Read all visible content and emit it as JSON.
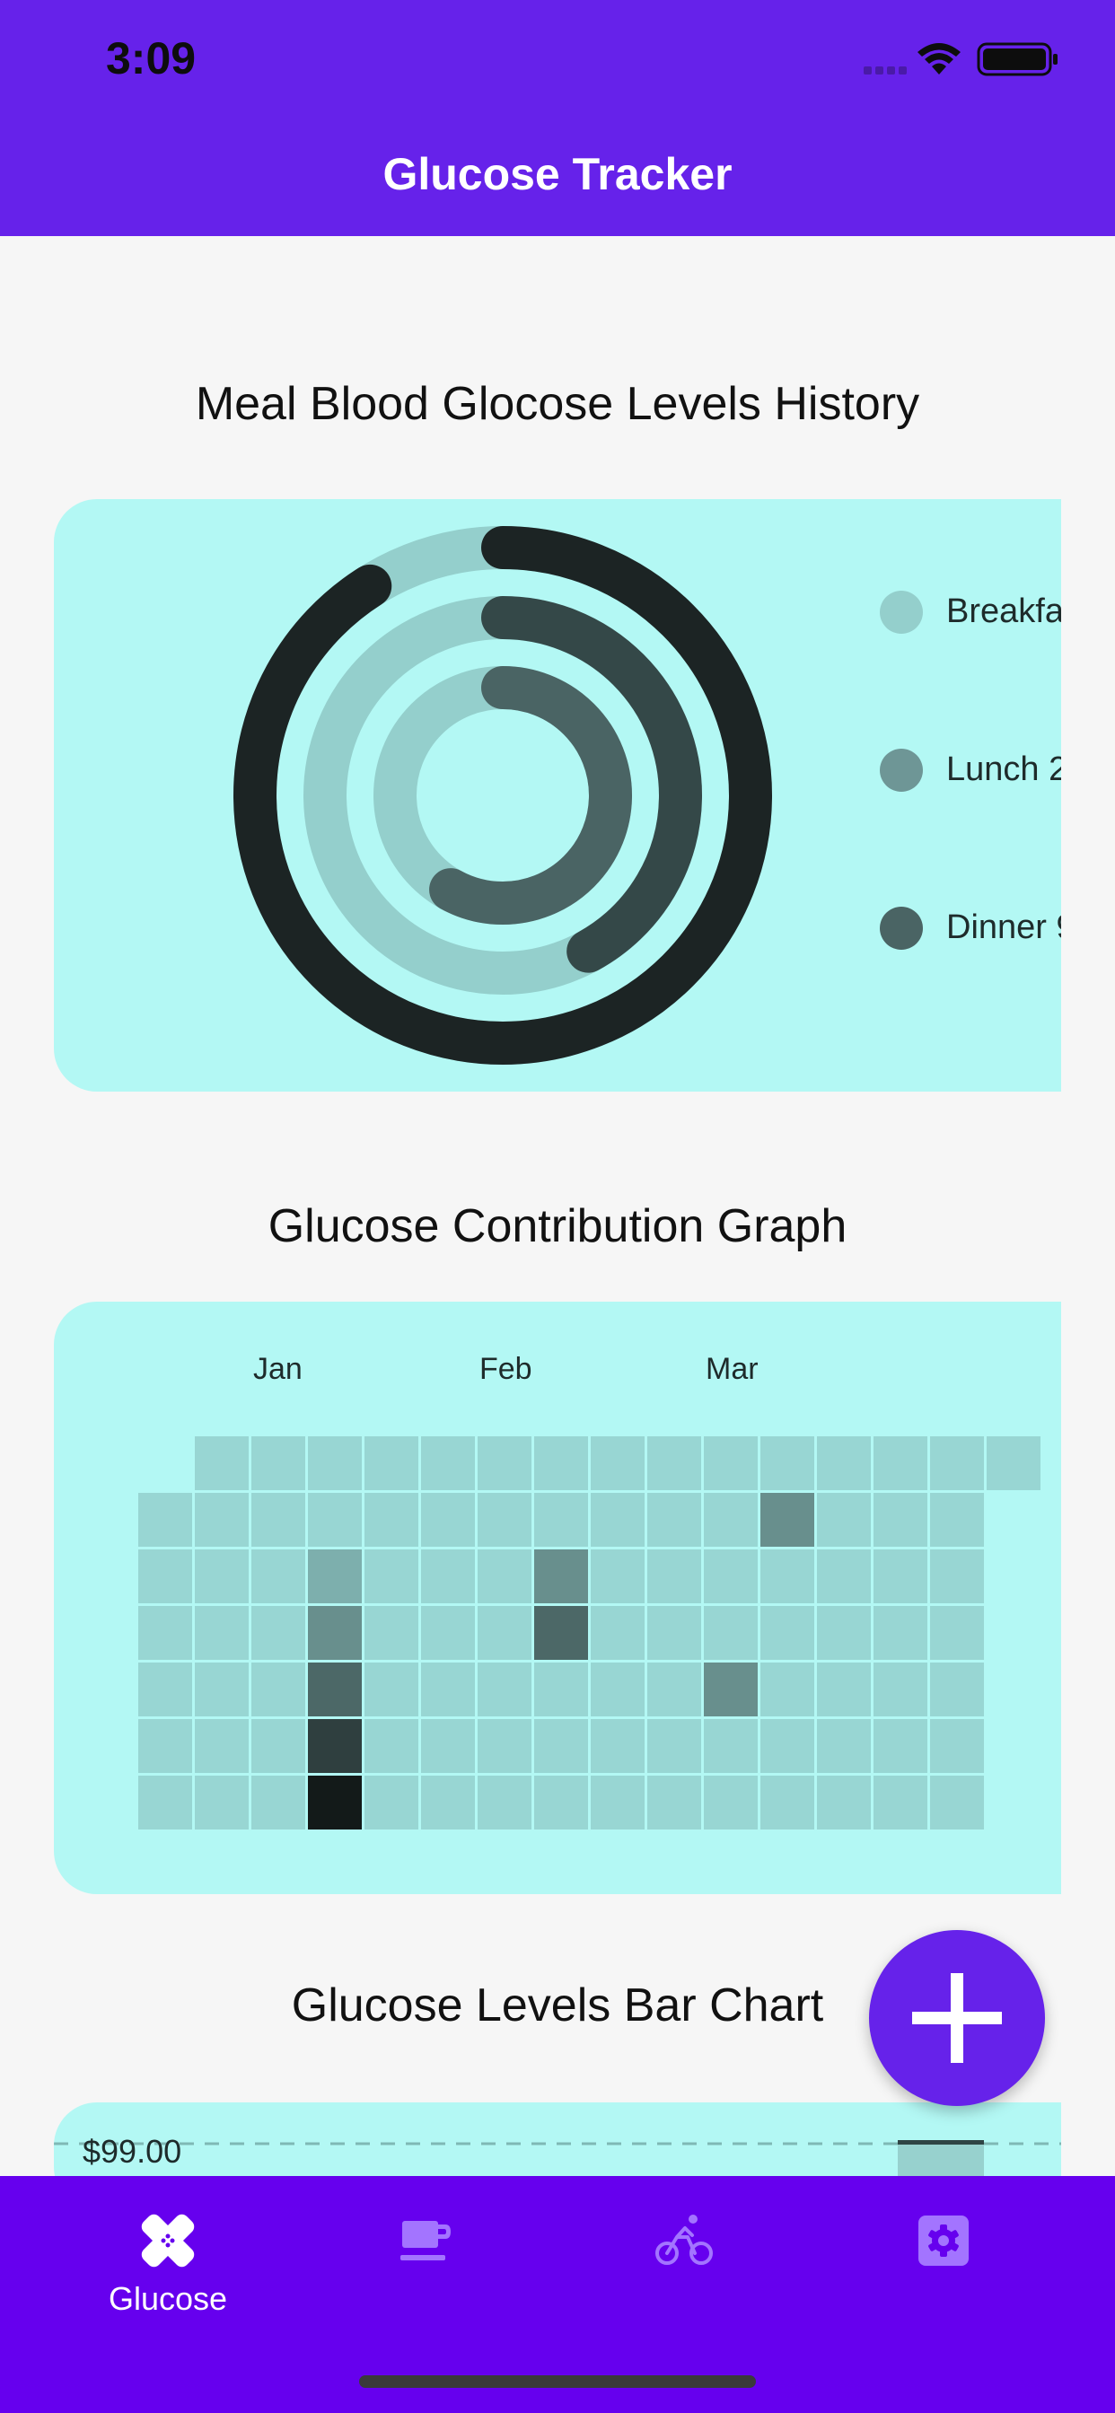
{
  "status_bar": {
    "time": "3:09"
  },
  "app_bar": {
    "title": "Glucose Tracker"
  },
  "ring_section": {
    "title": "Meal Blood Glocose Levels History",
    "legend": [
      {
        "label": "Breakfa",
        "color": "#94cfcc"
      },
      {
        "label": "Lunch 2",
        "color": "#6e9696"
      },
      {
        "label": "Dinner 9",
        "color": "#4a6464"
      }
    ]
  },
  "chart_data": [
    {
      "type": "progress-ring",
      "title": "Meal Blood Glocose Levels History",
      "series": [
        {
          "name": "Breakfa",
          "value": 0.58,
          "color": "#4a6464"
        },
        {
          "name": "Lunch 2",
          "value": 0.42,
          "color": "#344848"
        },
        {
          "name": "Dinner 9",
          "value": 0.91,
          "color": "#1c2424"
        }
      ],
      "track_color": "#94cfcc"
    },
    {
      "type": "heatmap",
      "title": "Glucose Contribution Graph",
      "months": [
        "Jan",
        "Feb",
        "Mar"
      ],
      "columns": 16,
      "rows": 7,
      "levels": {
        "0": "#98d6d3",
        "1": "#7dafad",
        "2": "#688f8d",
        "3": "#4c6867",
        "4": "#2f3f3f",
        "5": "#131a19"
      },
      "highlighted": [
        {
          "col": 11,
          "row": 1,
          "level": 2
        },
        {
          "col": 3,
          "row": 2,
          "level": 1
        },
        {
          "col": 7,
          "row": 2,
          "level": 2
        },
        {
          "col": 3,
          "row": 3,
          "level": 2
        },
        {
          "col": 7,
          "row": 3,
          "level": 3
        },
        {
          "col": 3,
          "row": 4,
          "level": 3
        },
        {
          "col": 10,
          "row": 4,
          "level": 2
        },
        {
          "col": 3,
          "row": 5,
          "level": 4
        },
        {
          "col": 3,
          "row": 6,
          "level": 5
        }
      ]
    },
    {
      "type": "bar",
      "title": "Glucose Levels Bar Chart",
      "y_tick_labels": [
        "$99.00"
      ]
    }
  ],
  "heatmap_section": {
    "title": "Glucose Contribution Graph",
    "months": [
      "Jan",
      "Feb",
      "Mar"
    ]
  },
  "bar_section": {
    "title": "Glucose Levels Bar Chart",
    "y_label_top": "$99.00"
  },
  "fab": {
    "icon": "plus-icon"
  },
  "bottom_nav": {
    "active_color": "#ffffff",
    "inactive_color": "#a374ff",
    "items": [
      {
        "label": "Glucose",
        "icon": "bandage-icon",
        "active": true
      },
      {
        "label": "",
        "icon": "coffee-cup-icon",
        "active": false
      },
      {
        "label": "",
        "icon": "bicycle-icon",
        "active": false
      },
      {
        "label": "",
        "icon": "settings-gear-icon",
        "active": false
      }
    ]
  }
}
